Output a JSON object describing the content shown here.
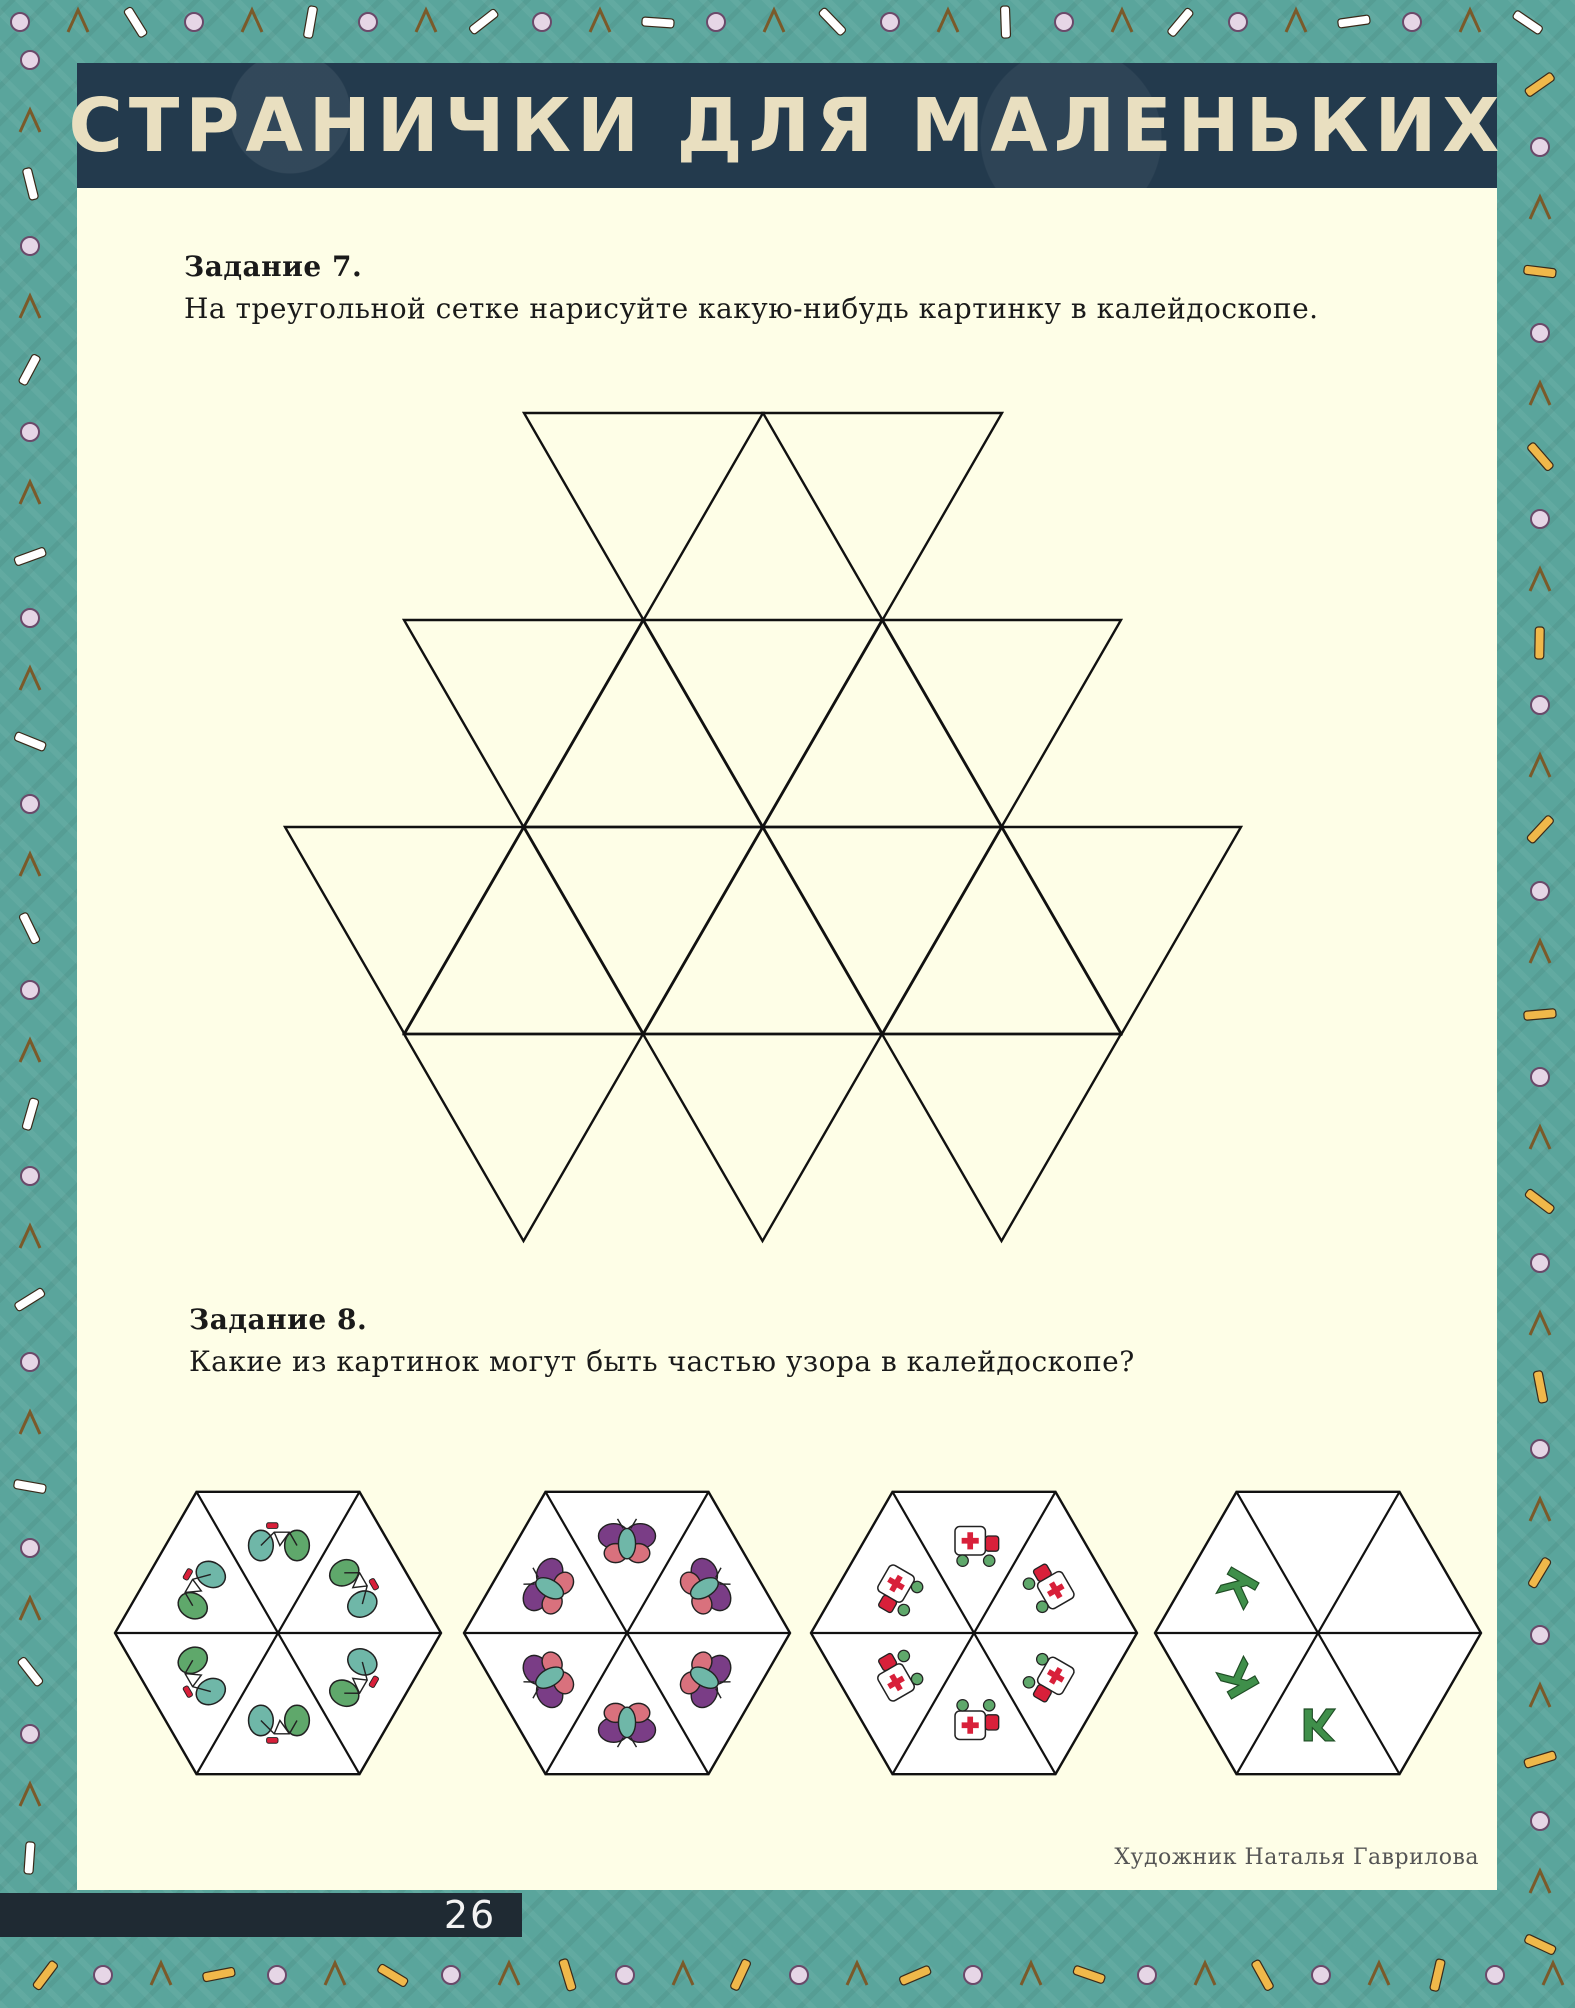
{
  "header": {
    "title": "СТРАНИЧКИ ДЛЯ МАЛЕНЬКИХ"
  },
  "task7": {
    "title": "Задание 7.",
    "text": "На треугольной сетке нарисуйте какую-нибудь картинку в калейдоскопе."
  },
  "task8": {
    "title": "Задание 8.",
    "text": "Какие из картинок могут быть частью узора в калейдоскопе?",
    "hexagons": [
      {
        "motif": "bicycle-icon"
      },
      {
        "motif": "bug-icon"
      },
      {
        "motif": "toy-truck-icon"
      },
      {
        "motif": "letter-k-icon",
        "letter": "К"
      }
    ]
  },
  "credit": "Художник Наталья Гаврилова",
  "page_number": "26",
  "colors": {
    "border": "#5aa59c",
    "page": "#fefee7",
    "header": "#233a4d",
    "teal": "#6fb7a8",
    "green": "#5fa86b",
    "red": "#d8203a",
    "purple": "#7a3d86",
    "pink": "#d9717d",
    "dark_green": "#3f8f4a"
  }
}
